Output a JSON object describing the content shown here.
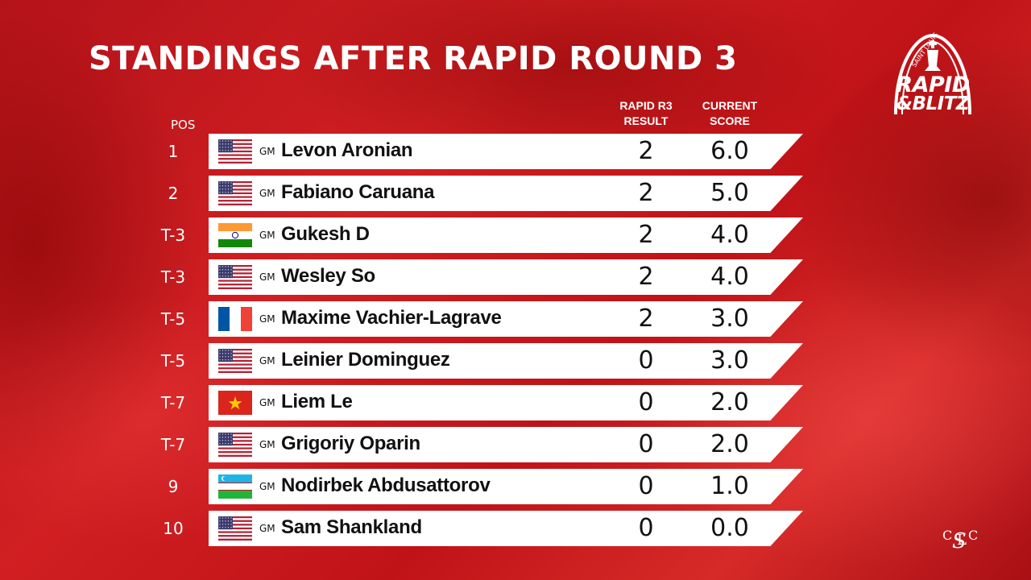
{
  "title": "STANDINGS AFTER RAPID ROUND 3",
  "logo": {
    "line1": "SAINT LOUIS",
    "line2": "RAPID",
    "line3": "&BLITZ"
  },
  "headers": {
    "pos": "POS",
    "result_line1": "RAPID R3",
    "result_line2": "RESULT",
    "score_line1": "CURRENT",
    "score_line2": "SCORE"
  },
  "monogram": "CSLC",
  "title_prefix": "GM",
  "rows": [
    {
      "pos": "1",
      "flag": "usa",
      "name": "Levon Aronian",
      "result": "2",
      "score": "6.0"
    },
    {
      "pos": "2",
      "flag": "usa",
      "name": "Fabiano Caruana",
      "result": "2",
      "score": "5.0"
    },
    {
      "pos": "T-3",
      "flag": "india",
      "name": "Gukesh D",
      "result": "2",
      "score": "4.0"
    },
    {
      "pos": "T-3",
      "flag": "usa",
      "name": "Wesley So",
      "result": "2",
      "score": "4.0"
    },
    {
      "pos": "T-5",
      "flag": "france",
      "name": "Maxime Vachier-Lagrave",
      "result": "2",
      "score": "3.0"
    },
    {
      "pos": "T-5",
      "flag": "usa",
      "name": "Leinier Dominguez",
      "result": "0",
      "score": "3.0"
    },
    {
      "pos": "T-7",
      "flag": "vietnam",
      "name": "Liem Le",
      "result": "0",
      "score": "2.0"
    },
    {
      "pos": "T-7",
      "flag": "usa",
      "name": "Grigoriy Oparin",
      "result": "0",
      "score": "2.0"
    },
    {
      "pos": "9",
      "flag": "uzbekistan",
      "name": "Nodirbek Abdusattorov",
      "result": "0",
      "score": "1.0"
    },
    {
      "pos": "10",
      "flag": "usa",
      "name": "Sam Shankland",
      "result": "0",
      "score": "0.0"
    }
  ]
}
